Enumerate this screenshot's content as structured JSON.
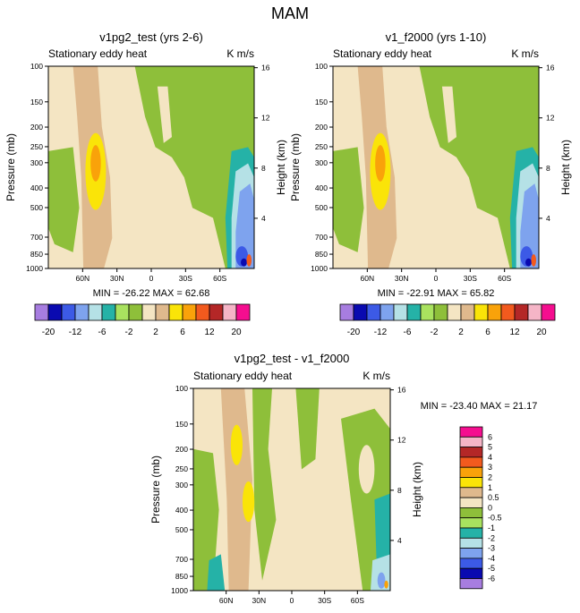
{
  "chart_data": {
    "type": "heatmap",
    "title": "MAM",
    "panels": [
      {
        "id": "p1",
        "subtitle": "v1pg2_test (yrs 2-6)",
        "left_label": "Stationary eddy heat",
        "units": "K m/s",
        "ylabel": "Pressure (mb)",
        "y2label": "Height (km)",
        "pressure_ticks": [
          "100",
          "150",
          "200",
          "250",
          "300",
          "400",
          "500",
          "700",
          "850",
          "1000"
        ],
        "pressure_values": [
          100,
          150,
          200,
          250,
          300,
          400,
          500,
          700,
          850,
          1000
        ],
        "height_ticks": [
          "16",
          "12",
          "8",
          "4"
        ],
        "height_values": [
          16,
          12,
          8,
          4
        ],
        "lat_ticks": [
          "60N",
          "30N",
          "0",
          "30S",
          "60S"
        ],
        "lat_values": [
          60,
          30,
          0,
          -30,
          -60
        ],
        "xlim": [
          90,
          -90
        ],
        "ylim": [
          1000,
          100
        ],
        "min_label": "MIN = -26.22",
        "max_label": "MAX =  62.68",
        "min": -26.22,
        "max": 62.68
      },
      {
        "id": "p2",
        "subtitle": "v1_f2000 (yrs 1-10)",
        "left_label": "Stationary eddy heat",
        "units": "K m/s",
        "ylabel": "Pressure (mb)",
        "y2label": "Height (km)",
        "pressure_ticks": [
          "100",
          "150",
          "200",
          "250",
          "300",
          "400",
          "500",
          "700",
          "850",
          "1000"
        ],
        "pressure_values": [
          100,
          150,
          200,
          250,
          300,
          400,
          500,
          700,
          850,
          1000
        ],
        "height_ticks": [
          "16",
          "12",
          "8",
          "4"
        ],
        "height_values": [
          16,
          12,
          8,
          4
        ],
        "lat_ticks": [
          "60N",
          "30N",
          "0",
          "30S",
          "60S"
        ],
        "lat_values": [
          60,
          30,
          0,
          -30,
          -60
        ],
        "xlim": [
          90,
          -90
        ],
        "ylim": [
          1000,
          100
        ],
        "min_label": "MIN = -22.91",
        "max_label": "MAX =  65.82",
        "min": -22.91,
        "max": 65.82
      },
      {
        "id": "p3",
        "subtitle": "v1pg2_test - v1_f2000",
        "left_label": "Stationary eddy heat",
        "units": "K m/s",
        "ylabel": "Pressure (mb)",
        "y2label": "Height (km)",
        "pressure_ticks": [
          "100",
          "150",
          "200",
          "250",
          "300",
          "400",
          "500",
          "700",
          "850",
          "1000"
        ],
        "pressure_values": [
          100,
          150,
          200,
          250,
          300,
          400,
          500,
          700,
          850,
          1000
        ],
        "height_ticks": [
          "16",
          "12",
          "8",
          "4"
        ],
        "height_values": [
          16,
          12,
          8,
          4
        ],
        "lat_ticks": [
          "60N",
          "30N",
          "0",
          "30S",
          "60S"
        ],
        "lat_values": [
          60,
          30,
          0,
          -30,
          -60
        ],
        "xlim": [
          90,
          -90
        ],
        "ylim": [
          1000,
          100
        ],
        "min_label": "MIN = -23.40",
        "max_label": "MAX =  21.17",
        "min": -23.4,
        "max": 21.17
      }
    ],
    "colorbar_top": {
      "levels": [
        -20,
        -16,
        -12,
        -8,
        -6,
        -4,
        -2,
        -1,
        1,
        2,
        4,
        6,
        8,
        12,
        16,
        20
      ],
      "labels": [
        "-20",
        "-12",
        "-6",
        "-2",
        "2",
        "6",
        "12",
        "20"
      ],
      "colors": [
        "#a77de0",
        "#0a0ab0",
        "#3c5ae6",
        "#7ea3ee",
        "#b5e1e6",
        "#25b2a7",
        "#a9e25f",
        "#8ebf3a",
        "#f4e5c3",
        "#dfb98d",
        "#fae408",
        "#f9a20a",
        "#f25a1e",
        "#b42727",
        "#f5b5c7",
        "#f50e8f"
      ]
    },
    "colorbar_diff": {
      "levels": [
        -6,
        -5,
        -4,
        -3,
        -2,
        -1,
        -0.5,
        0,
        0.5,
        1,
        2,
        3,
        4,
        5,
        6
      ],
      "labels": [
        "6",
        "5",
        "4",
        "3",
        "2",
        "1",
        "0.5",
        "0",
        "-0.5",
        "-1",
        "-2",
        "-3",
        "-4",
        "-5",
        "-6"
      ],
      "colors": [
        "#f50e8f",
        "#f5b5c7",
        "#b42727",
        "#f25a1e",
        "#f9a20a",
        "#fae408",
        "#dfb98d",
        "#f4e5c3",
        "#8ebf3a",
        "#a9e25f",
        "#25b2a7",
        "#b5e1e6",
        "#7ea3ee",
        "#3c5ae6",
        "#0a0ab0",
        "#a77de0"
      ]
    }
  }
}
